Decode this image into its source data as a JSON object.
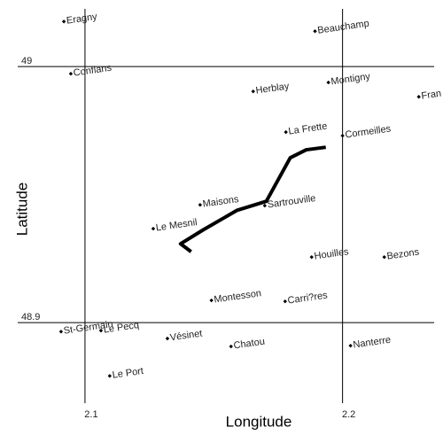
{
  "chart_data": {
    "type": "scatter",
    "x_label": "Longitude",
    "y_label": "Latitude",
    "xlim": [
      2.067,
      2.239
    ],
    "ylim": [
      48.853,
      49.026
    ],
    "xticks": [
      2.1,
      2.2
    ],
    "yticks": [
      48.9,
      49
    ],
    "grid": true,
    "color": "#000000",
    "points": {
      "names": [
        "Eragny",
        "Beauchamp",
        "Conflans",
        "Herblay",
        "Montigny",
        "Fran",
        "La Frette",
        "Cormeilles",
        "Maisons",
        "Sartrouville",
        "Le Mesnil",
        "Houilles",
        "Bezons",
        "Montesson",
        "Carri?res",
        "St-Germain",
        "Le Pecq",
        "Vésinet",
        "Chatou",
        "Nanterre",
        "Le Port"
      ],
      "x": [
        2.0918,
        2.1893,
        2.0945,
        2.1653,
        2.1945,
        2.2296,
        2.178,
        2.2,
        2.1447,
        2.1698,
        2.1265,
        2.188,
        2.2162,
        2.1491,
        2.1777,
        2.0907,
        2.1062,
        2.132,
        2.1567,
        2.2031,
        2.1096
      ],
      "y": [
        49.0176,
        49.0138,
        48.9972,
        48.9903,
        48.9938,
        48.9882,
        48.9744,
        48.973,
        48.946,
        48.9457,
        48.9367,
        48.9256,
        48.9256,
        48.9087,
        48.9083,
        48.8965,
        48.8969,
        48.8938,
        48.8907,
        48.891,
        48.8792
      ]
    },
    "track": {
      "x": [
        2.1412,
        2.1371,
        2.146,
        2.1591,
        2.1704,
        2.1797,
        2.1859,
        2.1935
      ],
      "y": [
        48.9277,
        48.9308,
        48.9363,
        48.9439,
        48.9474,
        48.9644,
        48.9675,
        48.9685
      ]
    }
  }
}
